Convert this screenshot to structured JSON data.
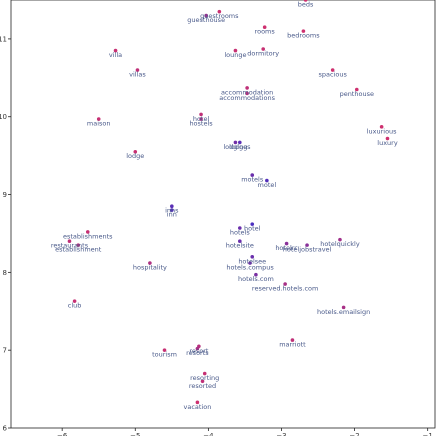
{
  "chart_data": {
    "type": "scatter",
    "title": "",
    "xlabel": "",
    "ylabel": "",
    "xlim": [
      -6.7,
      -0.9
    ],
    "ylim": [
      6,
      11.5
    ],
    "grid": false,
    "x_ticks": [
      -6,
      -5,
      -4,
      -3,
      -2,
      -1
    ],
    "y_ticks": [
      6,
      7,
      8,
      9,
      10,
      11
    ],
    "x_tick_labels": [
      "−6",
      "−5",
      "−4",
      "−3",
      "−2",
      "−1"
    ],
    "y_tick_labels": [
      "6",
      "7",
      "8",
      "9",
      "10",
      "11"
    ],
    "color_low": "#3b2fc8",
    "color_high": "#d6306a",
    "points": [
      {
        "label": "beds",
        "x": -2.67,
        "y": 11.5,
        "c": 0.95
      },
      {
        "label": "guestrooms",
        "x": -3.85,
        "y": 11.35,
        "c": 0.92
      },
      {
        "label": "guesthouse",
        "x": -4.03,
        "y": 11.3,
        "c": 0.6
      },
      {
        "label": "rooms",
        "x": -3.23,
        "y": 11.15,
        "c": 0.95
      },
      {
        "label": "bedrooms",
        "x": -2.7,
        "y": 11.1,
        "c": 0.95
      },
      {
        "label": "villa",
        "x": -5.27,
        "y": 10.85,
        "c": 0.9
      },
      {
        "label": "lounge",
        "x": -3.63,
        "y": 10.85,
        "c": 0.9
      },
      {
        "label": "dormitory",
        "x": -3.25,
        "y": 10.87,
        "c": 0.9
      },
      {
        "label": "villas",
        "x": -4.97,
        "y": 10.6,
        "c": 0.85
      },
      {
        "label": "spacious",
        "x": -2.3,
        "y": 10.6,
        "c": 0.95
      },
      {
        "label": "accommodation",
        "x": -3.47,
        "y": 10.37,
        "c": 0.85
      },
      {
        "label": "accommodations",
        "x": -3.47,
        "y": 10.3,
        "c": 0.8
      },
      {
        "label": "penthouse",
        "x": -1.97,
        "y": 10.35,
        "c": 0.95
      },
      {
        "label": "maison",
        "x": -5.5,
        "y": 9.97,
        "c": 0.9
      },
      {
        "label": "hotel",
        "x": -4.1,
        "y": 10.03,
        "c": 0.85
      },
      {
        "label": "hostels",
        "x": -4.1,
        "y": 9.97,
        "c": 0.75
      },
      {
        "label": "luxurious",
        "x": -1.63,
        "y": 9.87,
        "c": 0.95
      },
      {
        "label": "luxury",
        "x": -1.55,
        "y": 9.72,
        "c": 0.95
      },
      {
        "label": "lodging",
        "x": -3.63,
        "y": 9.67,
        "c": 0.35
      },
      {
        "label": "lodges",
        "x": -3.57,
        "y": 9.67,
        "c": 0.2
      },
      {
        "label": "lodge",
        "x": -5.0,
        "y": 9.55,
        "c": 0.9
      },
      {
        "label": "motels",
        "x": -3.4,
        "y": 9.25,
        "c": 0.3
      },
      {
        "label": "motel",
        "x": -3.2,
        "y": 9.18,
        "c": 0.15
      },
      {
        "label": "inns",
        "x": -4.5,
        "y": 8.85,
        "c": 0.2
      },
      {
        "label": "inn",
        "x": -4.5,
        "y": 8.8,
        "c": 0.15
      },
      {
        "label": "establishments",
        "x": -5.65,
        "y": 8.52,
        "c": 0.9
      },
      {
        "label": "restaurants",
        "x": -5.9,
        "y": 8.4,
        "c": 0.85
      },
      {
        "label": "establishment",
        "x": -5.78,
        "y": 8.35,
        "c": 0.8
      },
      {
        "label": "hotels",
        "x": -3.57,
        "y": 8.57,
        "c": 0.3
      },
      {
        "label": "hotel",
        "x": -3.4,
        "y": 8.62,
        "c": 0.1
      },
      {
        "label": "hotelsite",
        "x": -3.57,
        "y": 8.4,
        "c": 0.3
      },
      {
        "label": "hotelrc",
        "x": -2.93,
        "y": 8.37,
        "c": 0.5
      },
      {
        "label": "hoteljobstravel",
        "x": -2.65,
        "y": 8.35,
        "c": 0.5
      },
      {
        "label": "hotelquickly",
        "x": -2.2,
        "y": 8.42,
        "c": 0.65
      },
      {
        "label": "hotelsee",
        "x": -3.4,
        "y": 8.2,
        "c": 0.3
      },
      {
        "label": "hotels.compus",
        "x": -3.43,
        "y": 8.12,
        "c": 0.35
      },
      {
        "label": "hospitality",
        "x": -4.8,
        "y": 8.12,
        "c": 0.75
      },
      {
        "label": "hotels.com",
        "x": -3.35,
        "y": 7.97,
        "c": 0.4
      },
      {
        "label": "reserved.hotels.com",
        "x": -2.95,
        "y": 7.85,
        "c": 0.7
      },
      {
        "label": "club",
        "x": -5.83,
        "y": 7.63,
        "c": 0.9
      },
      {
        "label": "hotels.emailsign",
        "x": -2.15,
        "y": 7.55,
        "c": 0.7
      },
      {
        "label": "marriott",
        "x": -2.85,
        "y": 7.13,
        "c": 0.85
      },
      {
        "label": "resort",
        "x": -4.13,
        "y": 7.05,
        "c": 0.8
      },
      {
        "label": "resorts",
        "x": -4.15,
        "y": 7.02,
        "c": 0.7
      },
      {
        "label": "tourism",
        "x": -4.6,
        "y": 7.0,
        "c": 0.9
      },
      {
        "label": "resorting",
        "x": -4.05,
        "y": 6.7,
        "c": 0.9
      },
      {
        "label": "resorted",
        "x": -4.08,
        "y": 6.6,
        "c": 0.85
      },
      {
        "label": "vacation",
        "x": -4.15,
        "y": 6.33,
        "c": 0.95
      }
    ]
  }
}
